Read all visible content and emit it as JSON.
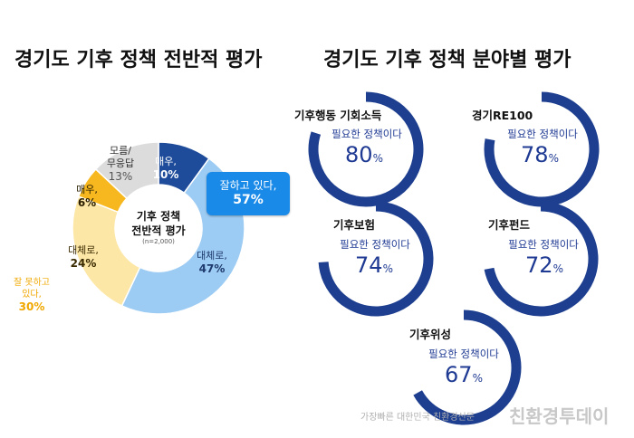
{
  "titles": {
    "left": "경기도 기후 정책 전반적 평가",
    "right": "경기도 기후 정책 분야별 평가"
  },
  "colors": {
    "dark_blue": "#1e4b9a",
    "light_blue": "#9ccbf3",
    "light_yellow": "#fde7a6",
    "orange_yellow": "#f6b81e",
    "gray": "#dcdcdc",
    "callout": "#1a8ae8",
    "gauge": "#1e3f8f"
  },
  "donut": {
    "center_title": "기후 정책\n전반적 평가",
    "center_title_line1": "기후 정책",
    "center_title_line2": "전반적 평가",
    "center_note": "(n=2,000)",
    "callout_label": "잘하고 있다,",
    "callout_value": "57%",
    "outside_label_line1": "잘 못하고",
    "outside_label_line2": "있다,",
    "outside_value": "30%"
  },
  "chart_data": [
    {
      "type": "pie",
      "title": "경기도 기후 정책 전반적 평가",
      "slices": [
        {
          "label": "매우,",
          "value": 10,
          "color": "#1e4b9a"
        },
        {
          "label": "대체로,",
          "value": 47,
          "color": "#9ccbf3"
        },
        {
          "label": "대체로,",
          "value": 24,
          "color": "#fde7a6"
        },
        {
          "label": "매우,",
          "value": 6,
          "color": "#f6b81e"
        },
        {
          "label": "모름/무응답",
          "value": 13,
          "color": "#dcdcdc"
        }
      ],
      "groups": [
        {
          "label": "잘하고 있다,",
          "value": 57
        },
        {
          "label": "잘 못하고 있다,",
          "value": 30
        }
      ]
    },
    {
      "type": "gauge",
      "title": "경기도 기후 정책 분야별 평가",
      "subtitle": "필요한 정책이다",
      "categories": [
        "기후행동 기회소득",
        "경기RE100",
        "기후보험",
        "기후펀드",
        "기후위성"
      ],
      "values": [
        80,
        78,
        74,
        72,
        67
      ]
    }
  ],
  "slice_text": [
    {
      "line1": "매우,",
      "line2": "10%"
    },
    {
      "line1": "대체로,",
      "line2": "47%"
    },
    {
      "line1": "대체로,",
      "line2": "24%"
    },
    {
      "line1": "매우,",
      "line2": "6%"
    },
    {
      "line1": "모름/",
      "line2": "무응답",
      "line3": "13%"
    }
  ],
  "gauges": [
    {
      "title": "기후행동 기회소득",
      "sub": "필요한 정책이다",
      "num": "80",
      "unit": "%"
    },
    {
      "title": "경기RE100",
      "sub": "필요한 정책이다",
      "num": "78",
      "unit": "%"
    },
    {
      "title": "기후보험",
      "sub": "필요한 정책이다",
      "num": "74",
      "unit": "%"
    },
    {
      "title": "기후펀드",
      "sub": "필요한 정책이다",
      "num": "72",
      "unit": "%"
    },
    {
      "title": "기후위성",
      "sub": "필요한 정책이다",
      "num": "67",
      "unit": "%"
    }
  ],
  "watermark": {
    "small": "가장빠른 대한민국 친환경신문",
    "brand": "친환경투데이"
  }
}
